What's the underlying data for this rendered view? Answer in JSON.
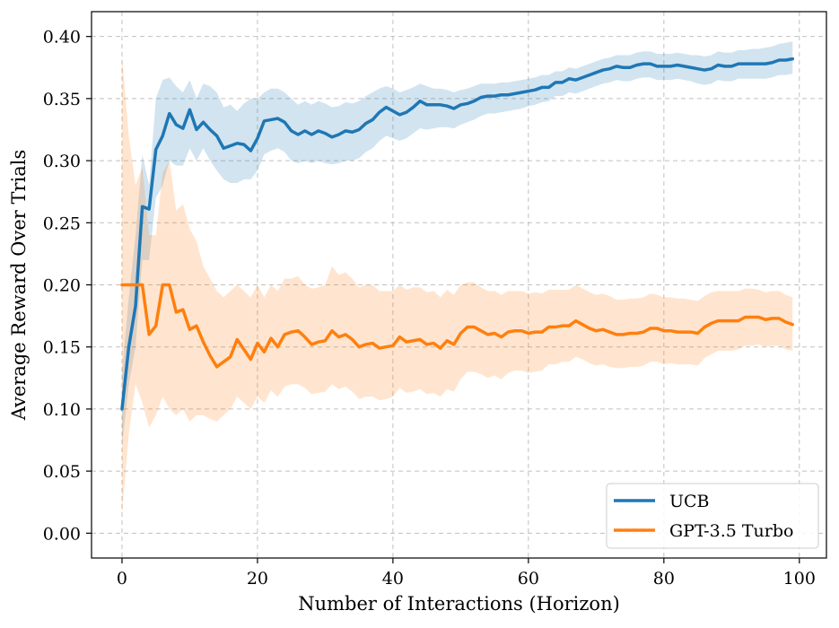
{
  "chart_data": {
    "type": "line",
    "xlabel": "Number of Interactions (Horizon)",
    "ylabel": "Average Reward Over Trials",
    "xlim": [
      -4.5,
      104
    ],
    "ylim": [
      -0.02,
      0.42
    ],
    "xticks": [
      0,
      20,
      40,
      60,
      80,
      100
    ],
    "xtick_labels": [
      "0",
      "20",
      "40",
      "60",
      "80",
      "100"
    ],
    "yticks": [
      0.0,
      0.05,
      0.1,
      0.15,
      0.2,
      0.25,
      0.3,
      0.35,
      0.4
    ],
    "ytick_labels": [
      "0.00",
      "0.05",
      "0.10",
      "0.15",
      "0.20",
      "0.25",
      "0.30",
      "0.35",
      "0.40"
    ],
    "grid": true,
    "legend_position": "bottom-right",
    "series": [
      {
        "name": "UCB",
        "color": "#1f77b4",
        "band_color": "#1f77b4",
        "x": [
          0,
          1,
          2,
          3,
          4,
          5,
          6,
          7,
          8,
          9,
          10,
          11,
          12,
          13,
          14,
          15,
          16,
          17,
          18,
          19,
          20,
          21,
          22,
          23,
          24,
          25,
          26,
          27,
          28,
          29,
          30,
          31,
          32,
          33,
          34,
          35,
          36,
          37,
          38,
          39,
          40,
          41,
          42,
          43,
          44,
          45,
          46,
          47,
          48,
          49,
          50,
          51,
          52,
          53,
          54,
          55,
          56,
          57,
          58,
          59,
          60,
          61,
          62,
          63,
          64,
          65,
          66,
          67,
          68,
          69,
          70,
          71,
          72,
          73,
          74,
          75,
          76,
          77,
          78,
          79,
          80,
          81,
          82,
          83,
          84,
          85,
          86,
          87,
          88,
          89,
          90,
          91,
          92,
          93,
          94,
          95,
          96,
          97,
          98,
          99
        ],
        "y": [
          0.1,
          0.15,
          0.183,
          0.263,
          0.261,
          0.309,
          0.32,
          0.338,
          0.329,
          0.326,
          0.341,
          0.325,
          0.331,
          0.325,
          0.32,
          0.31,
          0.312,
          0.314,
          0.313,
          0.308,
          0.318,
          0.332,
          0.333,
          0.334,
          0.331,
          0.324,
          0.321,
          0.324,
          0.321,
          0.324,
          0.322,
          0.319,
          0.321,
          0.324,
          0.323,
          0.325,
          0.33,
          0.333,
          0.339,
          0.343,
          0.34,
          0.337,
          0.339,
          0.343,
          0.348,
          0.345,
          0.345,
          0.345,
          0.344,
          0.342,
          0.345,
          0.346,
          0.348,
          0.351,
          0.352,
          0.352,
          0.353,
          0.353,
          0.354,
          0.355,
          0.356,
          0.357,
          0.359,
          0.359,
          0.363,
          0.363,
          0.366,
          0.365,
          0.367,
          0.369,
          0.371,
          0.373,
          0.374,
          0.376,
          0.375,
          0.375,
          0.377,
          0.378,
          0.378,
          0.376,
          0.376,
          0.376,
          0.377,
          0.376,
          0.375,
          0.374,
          0.373,
          0.374,
          0.377,
          0.376,
          0.376,
          0.378,
          0.378,
          0.378,
          0.378,
          0.378,
          0.379,
          0.381,
          0.381,
          0.382
        ],
        "band_upper": [
          0.13,
          0.19,
          0.24,
          0.305,
          0.28,
          0.35,
          0.365,
          0.367,
          0.36,
          0.355,
          0.365,
          0.35,
          0.362,
          0.36,
          0.355,
          0.343,
          0.345,
          0.34,
          0.346,
          0.35,
          0.35,
          0.355,
          0.358,
          0.358,
          0.355,
          0.35,
          0.345,
          0.348,
          0.345,
          0.348,
          0.346,
          0.343,
          0.344,
          0.347,
          0.346,
          0.348,
          0.352,
          0.355,
          0.358,
          0.36,
          0.358,
          0.355,
          0.357,
          0.359,
          0.362,
          0.36,
          0.358,
          0.358,
          0.357,
          0.355,
          0.357,
          0.358,
          0.36,
          0.362,
          0.362,
          0.362,
          0.363,
          0.363,
          0.364,
          0.365,
          0.366,
          0.367,
          0.369,
          0.369,
          0.372,
          0.372,
          0.375,
          0.374,
          0.376,
          0.378,
          0.38,
          0.382,
          0.383,
          0.385,
          0.385,
          0.385,
          0.387,
          0.388,
          0.388,
          0.386,
          0.386,
          0.386,
          0.387,
          0.386,
          0.385,
          0.385,
          0.384,
          0.385,
          0.388,
          0.387,
          0.387,
          0.389,
          0.389,
          0.39,
          0.39,
          0.391,
          0.392,
          0.394,
          0.395,
          0.396
        ],
        "band_lower": [
          0.07,
          0.12,
          0.15,
          0.22,
          0.22,
          0.27,
          0.28,
          0.3,
          0.296,
          0.296,
          0.31,
          0.3,
          0.31,
          0.3,
          0.292,
          0.285,
          0.282,
          0.282,
          0.285,
          0.285,
          0.292,
          0.305,
          0.308,
          0.31,
          0.307,
          0.3,
          0.298,
          0.3,
          0.298,
          0.3,
          0.298,
          0.297,
          0.298,
          0.3,
          0.3,
          0.302,
          0.307,
          0.31,
          0.316,
          0.32,
          0.318,
          0.316,
          0.318,
          0.322,
          0.326,
          0.325,
          0.326,
          0.327,
          0.327,
          0.326,
          0.329,
          0.331,
          0.333,
          0.336,
          0.338,
          0.338,
          0.339,
          0.34,
          0.341,
          0.342,
          0.344,
          0.345,
          0.347,
          0.348,
          0.352,
          0.352,
          0.355,
          0.354,
          0.356,
          0.358,
          0.36,
          0.362,
          0.363,
          0.365,
          0.364,
          0.364,
          0.366,
          0.367,
          0.367,
          0.365,
          0.365,
          0.365,
          0.366,
          0.365,
          0.364,
          0.362,
          0.361,
          0.362,
          0.365,
          0.364,
          0.364,
          0.366,
          0.366,
          0.366,
          0.366,
          0.366,
          0.367,
          0.369,
          0.369,
          0.37
        ]
      },
      {
        "name": "GPT-3.5 Turbo",
        "color": "#ff7f0e",
        "band_color": "#ff7f0e",
        "x": [
          0,
          1,
          2,
          3,
          4,
          5,
          6,
          7,
          8,
          9,
          10,
          11,
          12,
          13,
          14,
          15,
          16,
          17,
          18,
          19,
          20,
          21,
          22,
          23,
          24,
          25,
          26,
          27,
          28,
          29,
          30,
          31,
          32,
          33,
          34,
          35,
          36,
          37,
          38,
          39,
          40,
          41,
          42,
          43,
          44,
          45,
          46,
          47,
          48,
          49,
          50,
          51,
          52,
          53,
          54,
          55,
          56,
          57,
          58,
          59,
          60,
          61,
          62,
          63,
          64,
          65,
          66,
          67,
          68,
          69,
          70,
          71,
          72,
          73,
          74,
          75,
          76,
          77,
          78,
          79,
          80,
          81,
          82,
          83,
          84,
          85,
          86,
          87,
          88,
          89,
          90,
          91,
          92,
          93,
          94,
          95,
          96,
          97,
          98,
          99
        ],
        "y": [
          0.2,
          0.2,
          0.2,
          0.2,
          0.16,
          0.167,
          0.2,
          0.2,
          0.178,
          0.18,
          0.164,
          0.167,
          0.154,
          0.143,
          0.134,
          0.138,
          0.142,
          0.156,
          0.148,
          0.14,
          0.153,
          0.146,
          0.157,
          0.15,
          0.16,
          0.162,
          0.163,
          0.158,
          0.152,
          0.154,
          0.155,
          0.163,
          0.158,
          0.16,
          0.156,
          0.15,
          0.152,
          0.153,
          0.149,
          0.15,
          0.151,
          0.158,
          0.154,
          0.155,
          0.156,
          0.152,
          0.153,
          0.149,
          0.155,
          0.152,
          0.161,
          0.166,
          0.166,
          0.163,
          0.16,
          0.161,
          0.158,
          0.162,
          0.163,
          0.163,
          0.161,
          0.162,
          0.162,
          0.166,
          0.166,
          0.167,
          0.167,
          0.171,
          0.168,
          0.165,
          0.163,
          0.164,
          0.162,
          0.16,
          0.16,
          0.161,
          0.161,
          0.162,
          0.165,
          0.165,
          0.163,
          0.163,
          0.162,
          0.162,
          0.162,
          0.161,
          0.166,
          0.169,
          0.171,
          0.171,
          0.171,
          0.171,
          0.174,
          0.174,
          0.174,
          0.172,
          0.173,
          0.173,
          0.17,
          0.168
        ],
        "band_upper": [
          0.385,
          0.32,
          0.28,
          0.295,
          0.24,
          0.24,
          0.29,
          0.3,
          0.26,
          0.265,
          0.245,
          0.235,
          0.215,
          0.205,
          0.195,
          0.19,
          0.195,
          0.2,
          0.195,
          0.19,
          0.2,
          0.19,
          0.2,
          0.195,
          0.205,
          0.205,
          0.207,
          0.2,
          0.197,
          0.198,
          0.2,
          0.215,
          0.208,
          0.21,
          0.205,
          0.198,
          0.2,
          0.2,
          0.195,
          0.195,
          0.195,
          0.2,
          0.196,
          0.198,
          0.198,
          0.194,
          0.195,
          0.19,
          0.196,
          0.192,
          0.2,
          0.202,
          0.202,
          0.198,
          0.195,
          0.195,
          0.192,
          0.195,
          0.195,
          0.195,
          0.193,
          0.194,
          0.193,
          0.196,
          0.196,
          0.196,
          0.196,
          0.2,
          0.197,
          0.194,
          0.192,
          0.193,
          0.191,
          0.188,
          0.188,
          0.189,
          0.189,
          0.19,
          0.193,
          0.192,
          0.19,
          0.19,
          0.189,
          0.189,
          0.188,
          0.187,
          0.191,
          0.194,
          0.195,
          0.195,
          0.195,
          0.195,
          0.197,
          0.197,
          0.196,
          0.194,
          0.195,
          0.195,
          0.192,
          0.19
        ],
        "band_lower": [
          0.015,
          0.08,
          0.12,
          0.105,
          0.085,
          0.095,
          0.11,
          0.1,
          0.095,
          0.1,
          0.09,
          0.095,
          0.095,
          0.092,
          0.09,
          0.095,
          0.1,
          0.11,
          0.105,
          0.1,
          0.11,
          0.105,
          0.115,
          0.11,
          0.118,
          0.12,
          0.12,
          0.117,
          0.112,
          0.113,
          0.114,
          0.12,
          0.116,
          0.118,
          0.114,
          0.108,
          0.11,
          0.11,
          0.107,
          0.108,
          0.11,
          0.117,
          0.113,
          0.114,
          0.116,
          0.112,
          0.113,
          0.11,
          0.116,
          0.114,
          0.124,
          0.13,
          0.13,
          0.128,
          0.125,
          0.127,
          0.124,
          0.129,
          0.131,
          0.131,
          0.129,
          0.13,
          0.131,
          0.136,
          0.136,
          0.138,
          0.138,
          0.142,
          0.14,
          0.137,
          0.135,
          0.136,
          0.134,
          0.133,
          0.133,
          0.134,
          0.134,
          0.135,
          0.138,
          0.138,
          0.136,
          0.137,
          0.136,
          0.136,
          0.136,
          0.135,
          0.141,
          0.144,
          0.147,
          0.147,
          0.147,
          0.148,
          0.151,
          0.151,
          0.152,
          0.15,
          0.151,
          0.151,
          0.148,
          0.147
        ]
      }
    ]
  }
}
